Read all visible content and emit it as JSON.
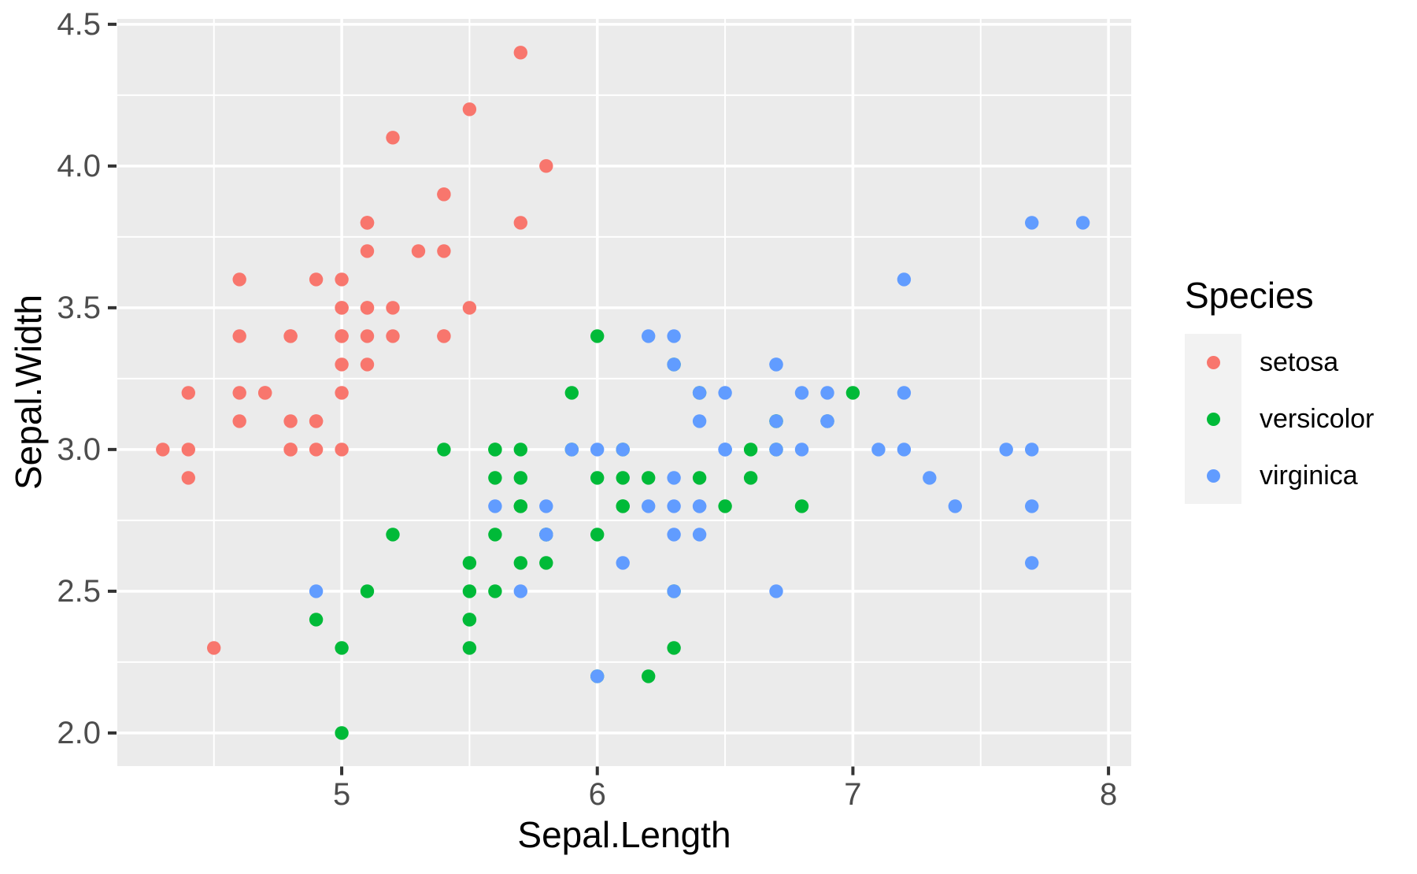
{
  "chart_data": {
    "type": "scatter",
    "title": "",
    "xlabel": "Sepal.Length",
    "ylabel": "Sepal.Width",
    "grid": "on",
    "point_radius": 8.7,
    "marker": "circle",
    "x_axis": {
      "title": "Sepal.Length",
      "tick_values": [
        5,
        6,
        7,
        8
      ],
      "tick_labels": [
        "5",
        "6",
        "7",
        "8"
      ],
      "minor_tick_values": [
        4.5,
        5.5,
        6.5,
        7.5
      ],
      "range": [
        4.122,
        8.089
      ]
    },
    "y_axis": {
      "title": "Sepal.Width",
      "tick_values": [
        2.0,
        2.5,
        3.0,
        3.5,
        4.0,
        4.5
      ],
      "tick_labels": [
        "2.0",
        "2.5",
        "3.0",
        "3.5",
        "4.0",
        "4.5"
      ],
      "minor_tick_values": [
        2.25,
        2.75,
        3.25,
        3.75,
        4.25
      ],
      "range": [
        1.883,
        4.519
      ]
    },
    "legend": {
      "title": "Species",
      "position": "right"
    },
    "colors": {
      "background": "#FFFFFF",
      "panel_background": "#EBEBEB",
      "gridline": "#FFFFFF",
      "tick_mark": "#333333",
      "tick_label": "#4D4D4D",
      "axis_title": "#000000",
      "legend_key_background": "#F2F2F2",
      "legend_text": "#000000"
    },
    "series": [
      {
        "name": "setosa",
        "color": "#F8766D",
        "points": [
          [
            5.1,
            3.5
          ],
          [
            4.9,
            3.0
          ],
          [
            4.7,
            3.2
          ],
          [
            4.6,
            3.1
          ],
          [
            5.0,
            3.6
          ],
          [
            5.4,
            3.9
          ],
          [
            4.6,
            3.4
          ],
          [
            5.0,
            3.4
          ],
          [
            4.4,
            2.9
          ],
          [
            4.9,
            3.1
          ],
          [
            5.4,
            3.7
          ],
          [
            4.8,
            3.4
          ],
          [
            4.8,
            3.0
          ],
          [
            4.3,
            3.0
          ],
          [
            5.8,
            4.0
          ],
          [
            5.7,
            4.4
          ],
          [
            5.4,
            3.9
          ],
          [
            5.1,
            3.5
          ],
          [
            5.7,
            3.8
          ],
          [
            5.1,
            3.8
          ],
          [
            5.4,
            3.4
          ],
          [
            5.1,
            3.7
          ],
          [
            4.6,
            3.6
          ],
          [
            5.1,
            3.3
          ],
          [
            4.8,
            3.4
          ],
          [
            5.0,
            3.0
          ],
          [
            5.0,
            3.4
          ],
          [
            5.2,
            3.5
          ],
          [
            5.2,
            3.4
          ],
          [
            4.7,
            3.2
          ],
          [
            4.8,
            3.1
          ],
          [
            5.4,
            3.4
          ],
          [
            5.2,
            4.1
          ],
          [
            5.5,
            4.2
          ],
          [
            4.9,
            3.1
          ],
          [
            5.0,
            3.2
          ],
          [
            5.5,
            3.5
          ],
          [
            4.9,
            3.6
          ],
          [
            4.4,
            3.0
          ],
          [
            5.1,
            3.4
          ],
          [
            5.0,
            3.5
          ],
          [
            4.5,
            2.3
          ],
          [
            4.4,
            3.2
          ],
          [
            5.0,
            3.5
          ],
          [
            5.1,
            3.8
          ],
          [
            4.8,
            3.0
          ],
          [
            5.1,
            3.8
          ],
          [
            4.6,
            3.2
          ],
          [
            5.3,
            3.7
          ],
          [
            5.0,
            3.3
          ]
        ]
      },
      {
        "name": "versicolor",
        "color": "#00BA38",
        "points": [
          [
            7.0,
            3.2
          ],
          [
            6.4,
            3.2
          ],
          [
            6.9,
            3.1
          ],
          [
            5.5,
            2.3
          ],
          [
            6.5,
            2.8
          ],
          [
            5.7,
            2.8
          ],
          [
            6.3,
            3.3
          ],
          [
            4.9,
            2.4
          ],
          [
            6.6,
            2.9
          ],
          [
            5.2,
            2.7
          ],
          [
            5.0,
            2.0
          ],
          [
            5.9,
            3.0
          ],
          [
            6.0,
            2.2
          ],
          [
            6.1,
            2.9
          ],
          [
            5.6,
            2.9
          ],
          [
            6.7,
            3.1
          ],
          [
            5.6,
            3.0
          ],
          [
            5.8,
            2.7
          ],
          [
            6.2,
            2.2
          ],
          [
            5.6,
            2.5
          ],
          [
            5.9,
            3.2
          ],
          [
            6.1,
            2.8
          ],
          [
            6.3,
            2.5
          ],
          [
            6.1,
            2.8
          ],
          [
            6.4,
            2.9
          ],
          [
            6.6,
            3.0
          ],
          [
            6.8,
            2.8
          ],
          [
            6.7,
            3.0
          ],
          [
            6.0,
            2.9
          ],
          [
            5.7,
            2.6
          ],
          [
            5.5,
            2.4
          ],
          [
            5.5,
            2.4
          ],
          [
            5.8,
            2.7
          ],
          [
            6.0,
            2.7
          ],
          [
            5.4,
            3.0
          ],
          [
            6.0,
            3.4
          ],
          [
            6.7,
            3.1
          ],
          [
            6.3,
            2.3
          ],
          [
            5.6,
            3.0
          ],
          [
            5.5,
            2.5
          ],
          [
            5.5,
            2.6
          ],
          [
            6.1,
            3.0
          ],
          [
            5.8,
            2.6
          ],
          [
            5.0,
            2.3
          ],
          [
            5.6,
            2.7
          ],
          [
            5.7,
            3.0
          ],
          [
            5.7,
            2.9
          ],
          [
            6.2,
            2.9
          ],
          [
            5.1,
            2.5
          ],
          [
            5.7,
            2.8
          ]
        ]
      },
      {
        "name": "virginica",
        "color": "#619CFF",
        "points": [
          [
            6.3,
            3.3
          ],
          [
            5.8,
            2.7
          ],
          [
            7.1,
            3.0
          ],
          [
            6.3,
            2.9
          ],
          [
            6.5,
            3.0
          ],
          [
            7.6,
            3.0
          ],
          [
            4.9,
            2.5
          ],
          [
            7.3,
            2.9
          ],
          [
            6.7,
            2.5
          ],
          [
            7.2,
            3.6
          ],
          [
            6.5,
            3.2
          ],
          [
            6.4,
            2.7
          ],
          [
            6.8,
            3.0
          ],
          [
            5.7,
            2.5
          ],
          [
            5.8,
            2.8
          ],
          [
            6.4,
            3.2
          ],
          [
            6.5,
            3.0
          ],
          [
            7.7,
            3.8
          ],
          [
            7.7,
            2.6
          ],
          [
            6.0,
            2.2
          ],
          [
            6.9,
            3.2
          ],
          [
            5.6,
            2.8
          ],
          [
            7.7,
            2.8
          ],
          [
            6.3,
            2.7
          ],
          [
            6.7,
            3.3
          ],
          [
            7.2,
            3.2
          ],
          [
            6.2,
            2.8
          ],
          [
            6.1,
            3.0
          ],
          [
            6.4,
            2.8
          ],
          [
            7.2,
            3.0
          ],
          [
            7.4,
            2.8
          ],
          [
            7.9,
            3.8
          ],
          [
            6.4,
            2.8
          ],
          [
            6.3,
            2.8
          ],
          [
            6.1,
            2.6
          ],
          [
            7.7,
            3.0
          ],
          [
            6.3,
            3.4
          ],
          [
            6.4,
            3.1
          ],
          [
            6.0,
            3.0
          ],
          [
            6.9,
            3.1
          ],
          [
            6.7,
            3.1
          ],
          [
            6.9,
            3.1
          ],
          [
            5.8,
            2.7
          ],
          [
            6.8,
            3.2
          ],
          [
            6.7,
            3.3
          ],
          [
            6.7,
            3.0
          ],
          [
            6.3,
            2.5
          ],
          [
            6.5,
            3.0
          ],
          [
            6.2,
            3.4
          ],
          [
            5.9,
            3.0
          ]
        ]
      }
    ]
  }
}
